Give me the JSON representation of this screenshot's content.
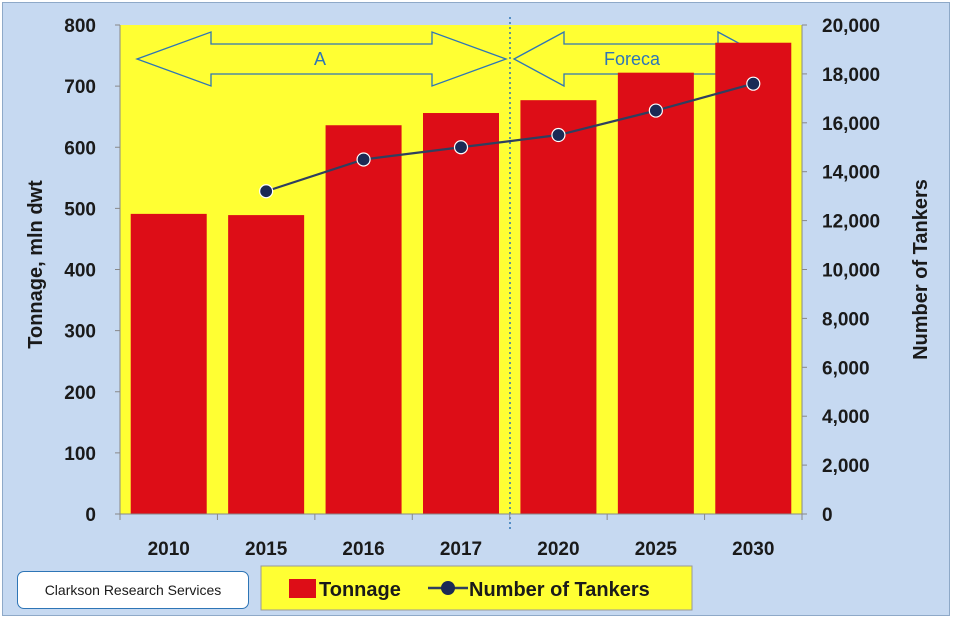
{
  "source_label": "Clarkson Research Services",
  "band_labels": {
    "actual": "A",
    "forecast": "Foreca"
  },
  "colors": {
    "bar": "#dd0d17",
    "line": "#2f3f5f",
    "marker": "#1b2a55",
    "plot_bg": "#ffff33",
    "frame_bg": "#c6d9f1",
    "arrow": "#2e75b6"
  },
  "chart_data": {
    "type": "bar",
    "categories": [
      "2010",
      "2015",
      "2016",
      "2017",
      "2020",
      "2025",
      "2030"
    ],
    "series": [
      {
        "name": "Tonnage",
        "axis": "left",
        "type": "bar",
        "values": [
          491,
          489,
          636,
          656,
          677,
          722,
          771
        ]
      },
      {
        "name": "Number of Tankers",
        "axis": "right",
        "type": "line",
        "values": [
          null,
          13200,
          14500,
          15000,
          15500,
          16500,
          17600
        ]
      }
    ],
    "ylabel": "Tonnage, mln dwt",
    "ylabel_right": "Number of Tankers",
    "ylim": [
      0,
      800
    ],
    "ylim_right": [
      0,
      20000
    ],
    "yticks": [
      "0",
      "100",
      "200",
      "300",
      "400",
      "500",
      "600",
      "700",
      "800"
    ],
    "yticks_right": [
      "0",
      "2,000",
      "4,000",
      "6,000",
      "8,000",
      "10,000",
      "12,000",
      "14,000",
      "16,000",
      "18,000",
      "20,000"
    ],
    "legend": [
      "Tonnage",
      "Number of Tankers"
    ],
    "legend_position": "bottom",
    "grid": false
  }
}
